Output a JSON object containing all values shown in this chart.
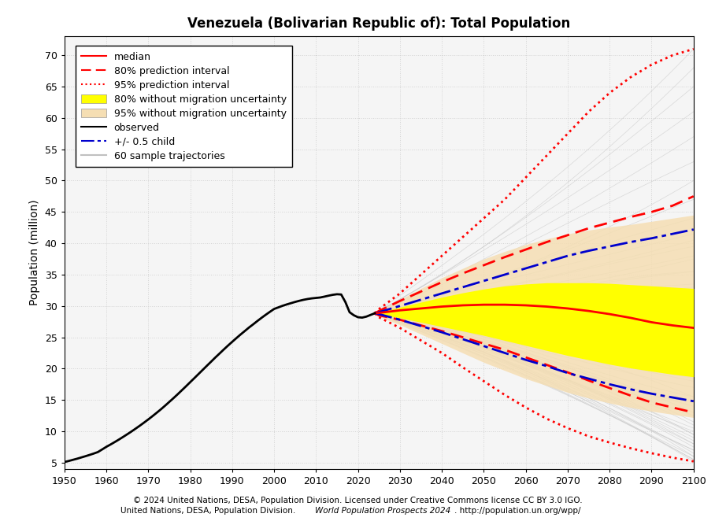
{
  "title": "Venezuela (Bolivarian Republic of): Total Population",
  "ylabel": "Population (million)",
  "xlabel": "",
  "footer_line1": "© 2024 United Nations, DESA, Population Division. Licensed under Creative Commons license CC BY 3.0 IGO.",
  "footer_line2_pre": "United Nations, DESA, Population Division. ",
  "footer_line2_italic": "World Population Prospects 2024",
  "footer_line2_post": ". http://population.un.org/wpp/",
  "xlim": [
    1950,
    2100
  ],
  "ylim": [
    4,
    73
  ],
  "yticks": [
    5,
    10,
    15,
    20,
    25,
    30,
    35,
    40,
    45,
    50,
    55,
    60,
    65,
    70
  ],
  "xticks": [
    1950,
    1960,
    1970,
    1980,
    1990,
    2000,
    2010,
    2020,
    2030,
    2040,
    2050,
    2060,
    2070,
    2080,
    2090,
    2100
  ],
  "obs_years": [
    1950,
    1951,
    1952,
    1953,
    1954,
    1955,
    1956,
    1957,
    1958,
    1959,
    1960,
    1961,
    1962,
    1963,
    1964,
    1965,
    1966,
    1967,
    1968,
    1969,
    1970,
    1971,
    1972,
    1973,
    1974,
    1975,
    1976,
    1977,
    1978,
    1979,
    1980,
    1981,
    1982,
    1983,
    1984,
    1985,
    1986,
    1987,
    1988,
    1989,
    1990,
    1991,
    1992,
    1993,
    1994,
    1995,
    1996,
    1997,
    1998,
    1999,
    2000,
    2001,
    2002,
    2003,
    2004,
    2005,
    2006,
    2007,
    2008,
    2009,
    2010,
    2011,
    2012,
    2013,
    2014,
    2015,
    2016,
    2017,
    2018,
    2019,
    2020,
    2021,
    2022,
    2023,
    2024
  ],
  "obs_values": [
    5.09,
    5.26,
    5.44,
    5.62,
    5.82,
    6.02,
    6.23,
    6.45,
    6.69,
    7.1,
    7.52,
    7.89,
    8.28,
    8.68,
    9.1,
    9.53,
    9.97,
    10.43,
    10.9,
    11.39,
    11.89,
    12.41,
    12.95,
    13.5,
    14.08,
    14.68,
    15.28,
    15.9,
    16.54,
    17.18,
    17.84,
    18.49,
    19.15,
    19.81,
    20.47,
    21.12,
    21.78,
    22.41,
    23.05,
    23.67,
    24.27,
    24.86,
    25.44,
    25.99,
    26.55,
    27.06,
    27.59,
    28.1,
    28.59,
    29.06,
    29.52,
    29.77,
    30.02,
    30.24,
    30.44,
    30.64,
    30.82,
    30.98,
    31.11,
    31.21,
    31.28,
    31.35,
    31.49,
    31.64,
    31.78,
    31.87,
    31.83,
    30.62,
    29.0,
    28.52,
    28.2,
    28.14,
    28.3,
    28.57,
    28.83
  ],
  "proj_years": [
    2024,
    2025,
    2030,
    2035,
    2040,
    2045,
    2050,
    2055,
    2060,
    2065,
    2070,
    2075,
    2080,
    2085,
    2090,
    2095,
    2100
  ],
  "median_values": [
    28.83,
    28.9,
    29.3,
    29.6,
    29.9,
    30.1,
    30.2,
    30.2,
    30.1,
    29.9,
    29.6,
    29.2,
    28.7,
    28.1,
    27.4,
    26.9,
    26.5
  ],
  "pi80_upper_values": [
    28.83,
    29.2,
    30.8,
    32.3,
    33.8,
    35.2,
    36.5,
    37.8,
    39.0,
    40.2,
    41.3,
    42.4,
    43.3,
    44.2,
    45.0,
    46.0,
    47.5
  ],
  "pi80_lower_values": [
    28.83,
    28.5,
    27.8,
    26.9,
    26.0,
    25.0,
    24.0,
    23.0,
    21.8,
    20.6,
    19.4,
    18.1,
    16.9,
    15.7,
    14.6,
    13.8,
    13.0
  ],
  "pi95_upper_values": [
    28.83,
    29.5,
    32.0,
    35.0,
    38.0,
    41.0,
    44.0,
    47.0,
    50.5,
    54.0,
    57.5,
    61.0,
    64.0,
    66.5,
    68.5,
    70.0,
    71.0
  ],
  "pi95_lower_values": [
    28.83,
    28.2,
    26.5,
    24.5,
    22.5,
    20.2,
    18.0,
    15.8,
    13.8,
    12.0,
    10.5,
    9.2,
    8.2,
    7.3,
    6.5,
    5.8,
    5.2
  ],
  "band80_nomig_upper": [
    28.83,
    29.0,
    29.8,
    30.6,
    31.4,
    32.1,
    32.7,
    33.2,
    33.5,
    33.7,
    33.7,
    33.7,
    33.6,
    33.4,
    33.2,
    33.0,
    32.8
  ],
  "band80_nomig_lower": [
    28.83,
    28.7,
    28.1,
    27.4,
    26.7,
    26.0,
    25.3,
    24.5,
    23.7,
    22.9,
    22.1,
    21.4,
    20.7,
    20.1,
    19.6,
    19.1,
    18.7
  ],
  "band95_nomig_upper": [
    28.83,
    29.3,
    31.0,
    32.8,
    34.5,
    36.0,
    37.5,
    38.7,
    39.8,
    40.7,
    41.5,
    42.1,
    42.6,
    43.0,
    43.5,
    44.0,
    44.5
  ],
  "band95_nomig_lower": [
    28.83,
    28.3,
    27.0,
    25.5,
    24.0,
    22.5,
    21.0,
    19.7,
    18.4,
    17.3,
    16.2,
    15.3,
    14.5,
    13.8,
    13.2,
    12.7,
    12.2
  ],
  "child05_upper_values": [
    28.83,
    29.0,
    30.0,
    31.0,
    32.0,
    33.0,
    34.0,
    35.0,
    36.0,
    37.0,
    38.0,
    38.8,
    39.5,
    40.2,
    40.8,
    41.5,
    42.2
  ],
  "child05_lower_values": [
    28.83,
    28.7,
    27.8,
    26.8,
    25.8,
    24.7,
    23.6,
    22.5,
    21.4,
    20.4,
    19.3,
    18.4,
    17.5,
    16.7,
    16.0,
    15.4,
    14.8
  ],
  "traj_end_values": [
    71.0,
    68.0,
    65.0,
    61.0,
    57.0,
    53.0,
    50.0,
    47.0,
    44.0,
    41.5,
    39.5,
    37.5,
    35.5,
    33.5,
    31.5,
    30.0,
    28.5,
    27.0,
    26.0,
    25.0,
    24.0,
    23.0,
    21.5,
    20.0,
    18.5,
    17.0,
    15.5,
    14.0,
    12.5,
    11.5,
    10.5,
    10.0,
    9.5,
    9.0,
    8.5,
    8.0,
    7.5,
    7.0,
    6.5,
    6.0,
    5.5,
    5.2,
    5.5,
    6.0,
    7.0,
    8.0,
    9.5,
    11.0,
    13.0,
    15.5,
    18.0,
    20.5,
    23.0,
    25.5,
    28.0,
    30.5,
    33.0,
    35.5,
    38.0,
    40.5
  ],
  "colors": {
    "median": "#FF0000",
    "pi80": "#FF0000",
    "pi95": "#FF0000",
    "band80_nomig": "#FFFF00",
    "band95_nomig": "#F5DEB3",
    "observed": "#000000",
    "child05": "#0000CD",
    "trajectories": "#C0C0C0",
    "grid": "#D3D3D3",
    "background": "#FFFFFF",
    "plot_bg": "#F5F5F5"
  },
  "legend_fontsize": 9,
  "title_fontsize": 12,
  "axis_fontsize": 10,
  "tick_fontsize": 9
}
